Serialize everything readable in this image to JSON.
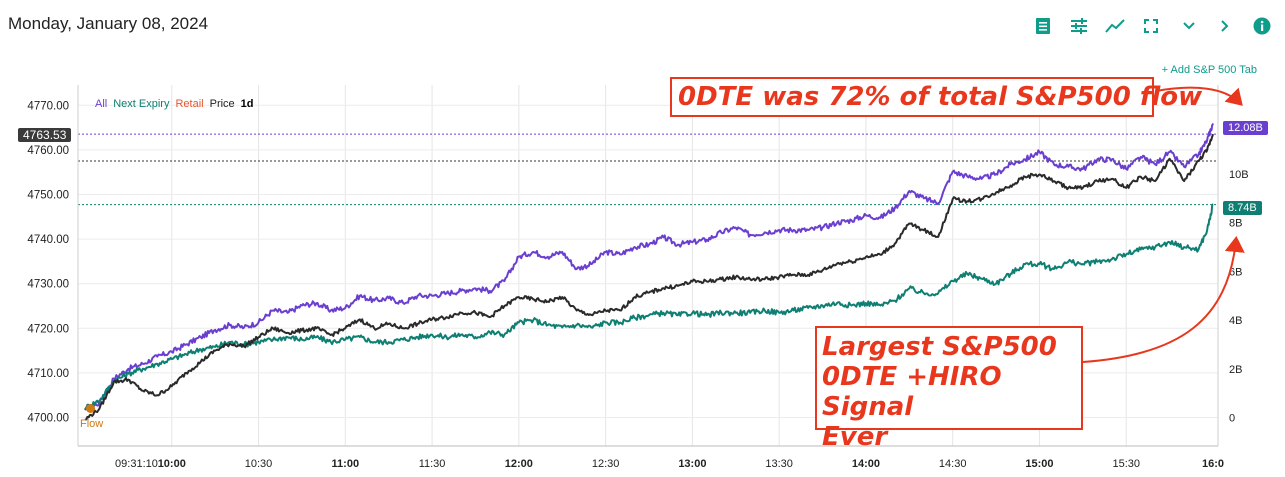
{
  "header": {
    "date": "Monday, January 08, 2024",
    "add_tab_label": "+ Add S&P 500 Tab",
    "toolbar_icons": [
      "table-icon",
      "sliders-icon",
      "line-chart-icon",
      "fullscreen-icon",
      "chevron-down-icon",
      "chevron-right-icon",
      "info-icon"
    ]
  },
  "legend": {
    "all": "All",
    "next_expiry": "Next Expiry",
    "retail": "Retail",
    "price": "Price",
    "range": "1d"
  },
  "colors": {
    "all": "#6a3fd0",
    "next_expiry": "#0e7f72",
    "retail": "#e8532e",
    "price": "#2a2a2a",
    "annotation": "#e8371d",
    "accent": "#0e9c8b"
  },
  "badges": {
    "price_current": "4763.53",
    "all_current": "12.08B",
    "next_expiry_current": "8.74B"
  },
  "flow_label": "Flow",
  "annotations": {
    "top": "0DTE was 72% of total S&P500 flow",
    "bottom": [
      "Largest S&P500",
      "0DTE +HIRO Signal",
      "Ever"
    ]
  },
  "chart_data": {
    "type": "line",
    "left_axis": {
      "ticks": [
        "4700.00",
        "4710.00",
        "4720.00",
        "4730.00",
        "4740.00",
        "4750.00",
        "4760.00",
        "4770.00"
      ],
      "range": [
        4697,
        4771
      ]
    },
    "right_axis": {
      "ticks": [
        "0",
        "2B",
        "4B",
        "6B",
        "8B",
        "10B"
      ],
      "range": [
        -1.3,
        13.5
      ]
    },
    "x_axis": {
      "ticks": [
        "09:31:10",
        "10:00",
        "10:30",
        "11:00",
        "11:30",
        "12:00",
        "12:30",
        "13:00",
        "13:30",
        "14:00",
        "14:30",
        "15:00",
        "15:30",
        "16:0"
      ],
      "major": [
        "10:00",
        "11:00",
        "12:00",
        "13:00",
        "14:00",
        "15:00",
        "16:0"
      ],
      "minutes": [
        1.2,
        30,
        60,
        90,
        120,
        150,
        180,
        210,
        240,
        270,
        300,
        330,
        360,
        390
      ]
    },
    "reference_levels": {
      "price_high": 4763.53,
      "price_mid": 4757.5,
      "all_flow_b": 12.08,
      "next_expiry_flow_b": 8.74
    },
    "series": [
      {
        "name": "All",
        "axis": "right",
        "x_minutes": [
          0,
          5,
          10,
          15,
          20,
          25,
          30,
          35,
          40,
          45,
          50,
          55,
          60,
          65,
          70,
          75,
          80,
          85,
          90,
          95,
          100,
          105,
          110,
          115,
          120,
          125,
          130,
          135,
          140,
          145,
          150,
          155,
          160,
          165,
          170,
          175,
          180,
          185,
          190,
          195,
          200,
          205,
          210,
          215,
          220,
          225,
          230,
          235,
          240,
          245,
          250,
          255,
          260,
          265,
          270,
          275,
          280,
          285,
          290,
          295,
          300,
          305,
          310,
          315,
          320,
          325,
          330,
          335,
          340,
          345,
          350,
          355,
          360,
          365,
          370,
          375,
          380,
          385,
          388,
          390
        ],
        "values": [
          0.3,
          0.6,
          1.6,
          2.0,
          2.2,
          2.5,
          2.7,
          3.0,
          3.3,
          3.6,
          3.8,
          3.7,
          3.9,
          4.4,
          4.3,
          4.6,
          4.7,
          4.4,
          4.5,
          5.0,
          4.8,
          4.9,
          4.7,
          5.0,
          5.0,
          5.1,
          5.2,
          5.3,
          5.2,
          5.6,
          6.6,
          6.8,
          6.6,
          6.8,
          6.1,
          6.3,
          6.8,
          6.7,
          7.0,
          7.1,
          7.4,
          7.1,
          7.2,
          7.3,
          7.6,
          7.8,
          7.5,
          7.6,
          7.7,
          7.7,
          7.7,
          7.8,
          8.0,
          8.1,
          8.3,
          8.2,
          8.6,
          9.3,
          9.0,
          8.8,
          10.1,
          9.9,
          9.8,
          10.0,
          10.4,
          10.6,
          10.9,
          10.4,
          10.3,
          10.2,
          10.6,
          10.6,
          10.2,
          10.7,
          10.4,
          10.9,
          10.3,
          10.8,
          11.4,
          12.08
        ]
      },
      {
        "name": "Next Expiry",
        "axis": "right",
        "x_minutes": [
          0,
          5,
          10,
          15,
          20,
          25,
          30,
          35,
          40,
          45,
          50,
          55,
          60,
          65,
          70,
          75,
          80,
          85,
          90,
          95,
          100,
          105,
          110,
          115,
          120,
          125,
          130,
          135,
          140,
          145,
          150,
          155,
          160,
          165,
          170,
          175,
          180,
          185,
          190,
          195,
          200,
          205,
          210,
          215,
          220,
          225,
          230,
          235,
          240,
          245,
          250,
          255,
          260,
          265,
          270,
          275,
          280,
          285,
          290,
          295,
          300,
          305,
          310,
          315,
          320,
          325,
          330,
          335,
          340,
          345,
          350,
          355,
          360,
          365,
          370,
          375,
          380,
          385,
          388,
          390
        ],
        "values": [
          0.4,
          0.7,
          1.5,
          1.8,
          2.0,
          2.2,
          2.4,
          2.6,
          2.8,
          2.9,
          3.1,
          3.0,
          3.1,
          3.2,
          3.3,
          3.2,
          3.3,
          3.1,
          3.2,
          3.3,
          3.1,
          3.1,
          3.2,
          3.3,
          3.4,
          3.3,
          3.4,
          3.3,
          3.5,
          3.4,
          3.9,
          4.0,
          3.8,
          3.7,
          3.8,
          3.7,
          3.9,
          3.9,
          4.1,
          4.2,
          4.3,
          4.2,
          4.3,
          4.2,
          4.3,
          4.3,
          4.3,
          4.4,
          4.3,
          4.4,
          4.5,
          4.6,
          4.7,
          4.6,
          4.7,
          4.6,
          4.8,
          5.3,
          5.1,
          5.1,
          5.6,
          5.9,
          5.7,
          5.5,
          5.9,
          6.3,
          6.3,
          6.1,
          6.4,
          6.3,
          6.4,
          6.5,
          6.7,
          6.9,
          7.0,
          7.2,
          7.0,
          6.9,
          7.7,
          8.74
        ]
      },
      {
        "name": "Price",
        "axis": "left",
        "x_minutes": [
          0,
          5,
          10,
          15,
          20,
          25,
          30,
          35,
          40,
          45,
          50,
          55,
          60,
          65,
          70,
          75,
          80,
          85,
          90,
          95,
          100,
          105,
          110,
          115,
          120,
          125,
          130,
          135,
          140,
          145,
          150,
          155,
          160,
          165,
          170,
          175,
          180,
          185,
          190,
          195,
          200,
          205,
          210,
          215,
          220,
          225,
          230,
          235,
          240,
          245,
          250,
          255,
          260,
          265,
          270,
          275,
          280,
          285,
          290,
          295,
          300,
          305,
          310,
          315,
          320,
          325,
          330,
          335,
          340,
          345,
          350,
          355,
          360,
          365,
          370,
          375,
          380,
          385,
          388,
          390
        ],
        "values": [
          4699.5,
          4702.0,
          4708.0,
          4708.5,
          4706.0,
          4705.0,
          4707.0,
          4710.0,
          4712.5,
          4715.0,
          4716.5,
          4716.0,
          4718.0,
          4720.0,
          4719.0,
          4719.5,
          4720.0,
          4718.5,
          4720.0,
          4722.0,
          4720.0,
          4721.0,
          4720.0,
          4721.0,
          4722.0,
          4722.5,
          4723.5,
          4723.5,
          4722.5,
          4725.0,
          4727.0,
          4726.5,
          4726.0,
          4727.0,
          4724.0,
          4723.0,
          4724.0,
          4724.0,
          4727.0,
          4728.0,
          4729.0,
          4729.5,
          4730.5,
          4730.5,
          4731.0,
          4731.5,
          4731.0,
          4731.0,
          4731.5,
          4732.0,
          4732.0,
          4733.0,
          4734.5,
          4735.0,
          4736.0,
          4736.5,
          4739.0,
          4743.5,
          4742.0,
          4740.5,
          4749.0,
          4748.5,
          4749.0,
          4750.5,
          4752.0,
          4754.0,
          4754.5,
          4753.0,
          4751.5,
          4751.5,
          4753.0,
          4753.5,
          4751.5,
          4754.0,
          4753.0,
          4758.0,
          4753.0,
          4757.5,
          4760.0,
          4763.53
        ]
      }
    ]
  }
}
